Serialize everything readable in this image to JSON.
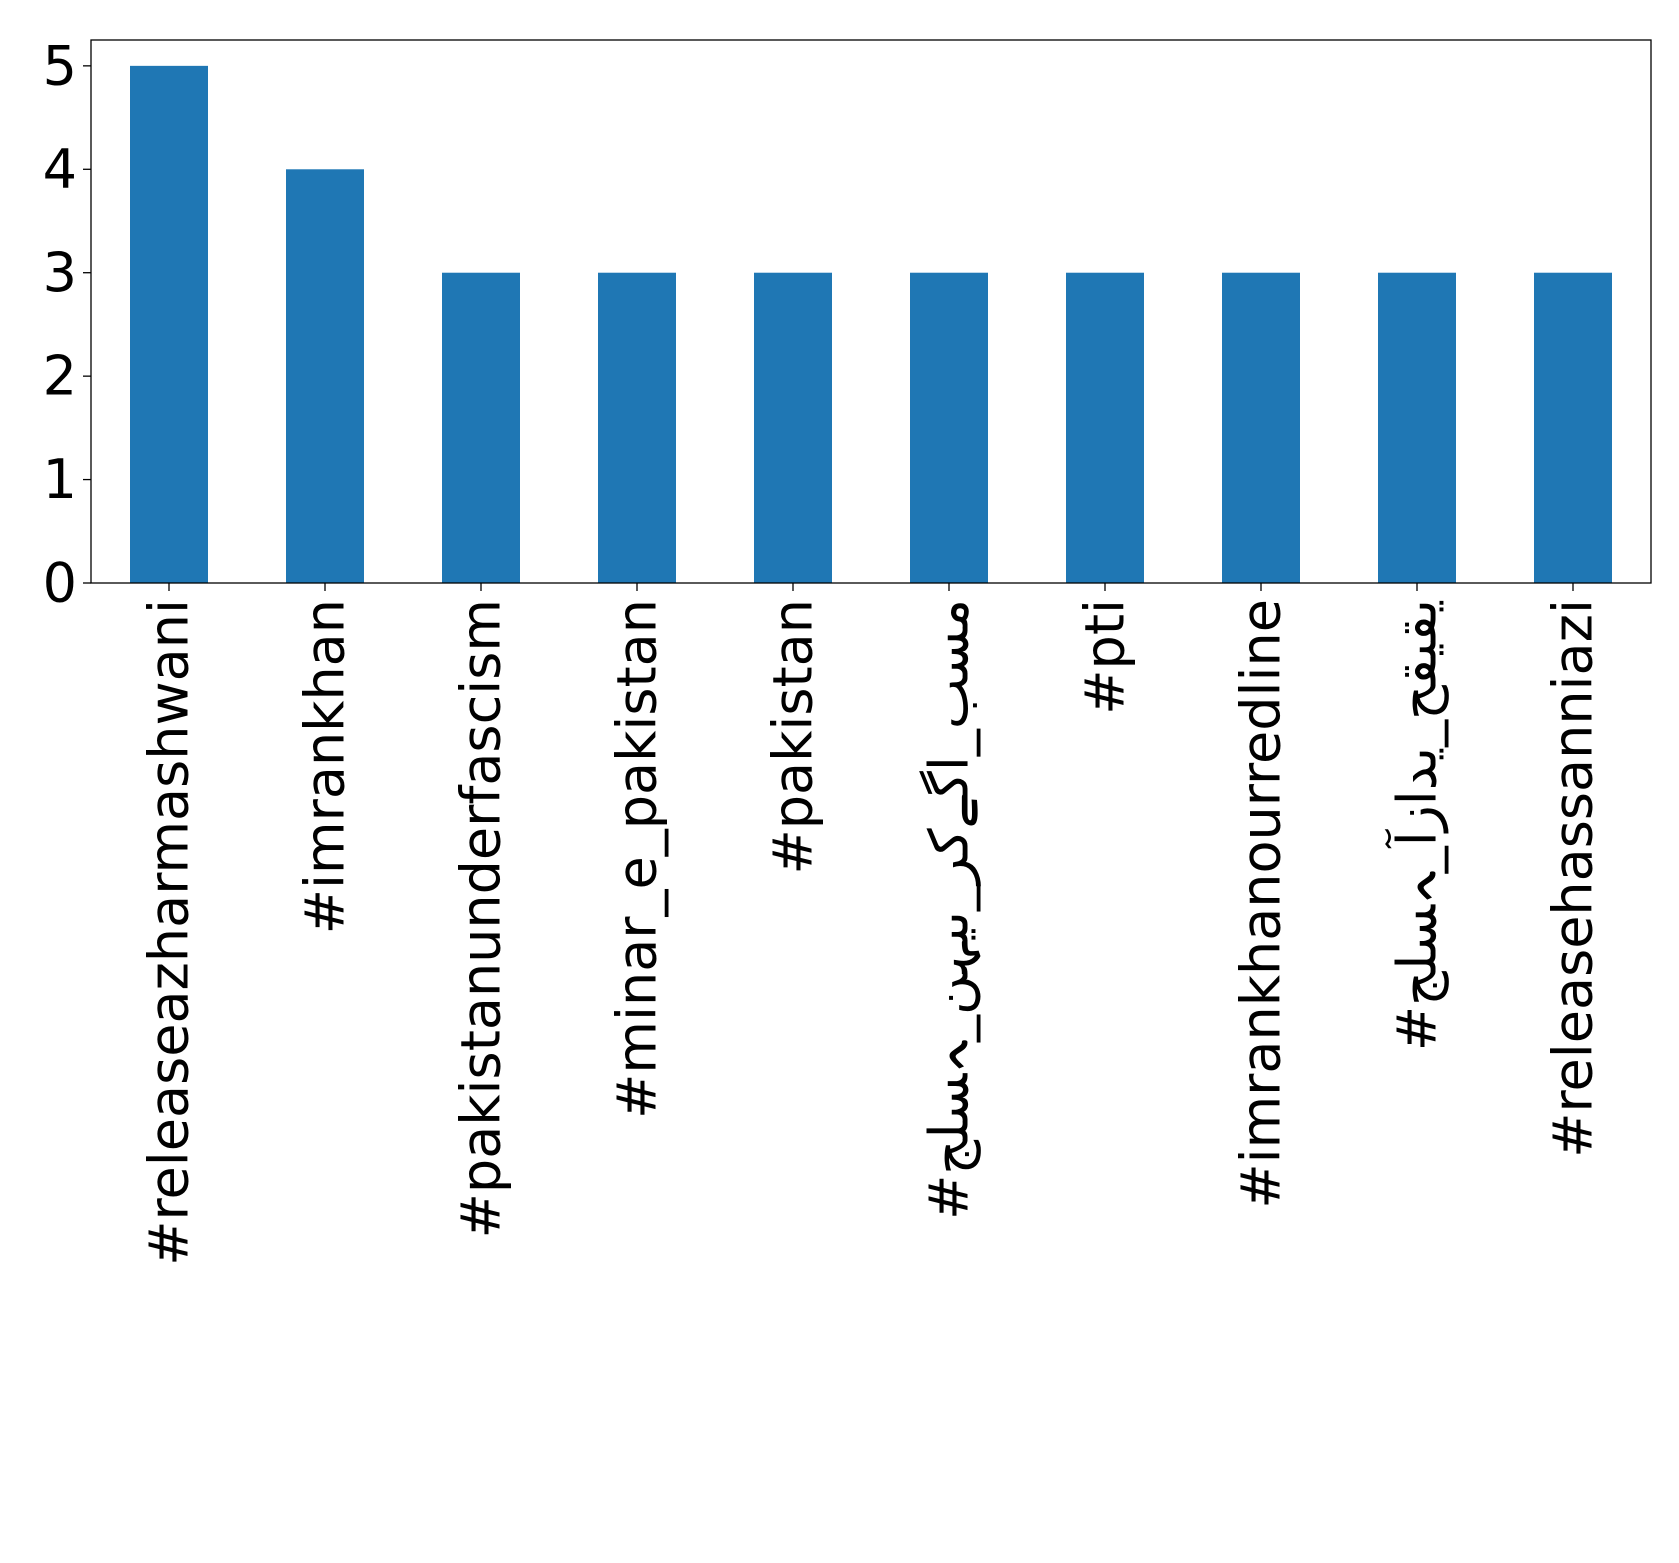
{
  "chart_data": {
    "type": "bar",
    "categories": [
      "#releaseazharmashwani",
      "#imrankhan",
      "#pakistanunderfascism",
      "#minar_e_pakistan",
      "#pakistan",
      "#جلسہ_نہیں_رکےگا_بسم",
      "#pti",
      "#imrankhanourredline",
      "#جلسہ_آزادی_حقیقی",
      "#releasehassanniazi"
    ],
    "values": [
      5,
      4,
      3,
      3,
      3,
      3,
      3,
      3,
      3,
      3
    ],
    "ylim": [
      0,
      5.25
    ],
    "yticks": [
      0,
      1,
      2,
      3,
      4,
      5
    ],
    "colors": {
      "bar": "#1f77b4"
    },
    "grid": false,
    "legend": "none",
    "title": "",
    "xlabel": "",
    "ylabel": ""
  }
}
